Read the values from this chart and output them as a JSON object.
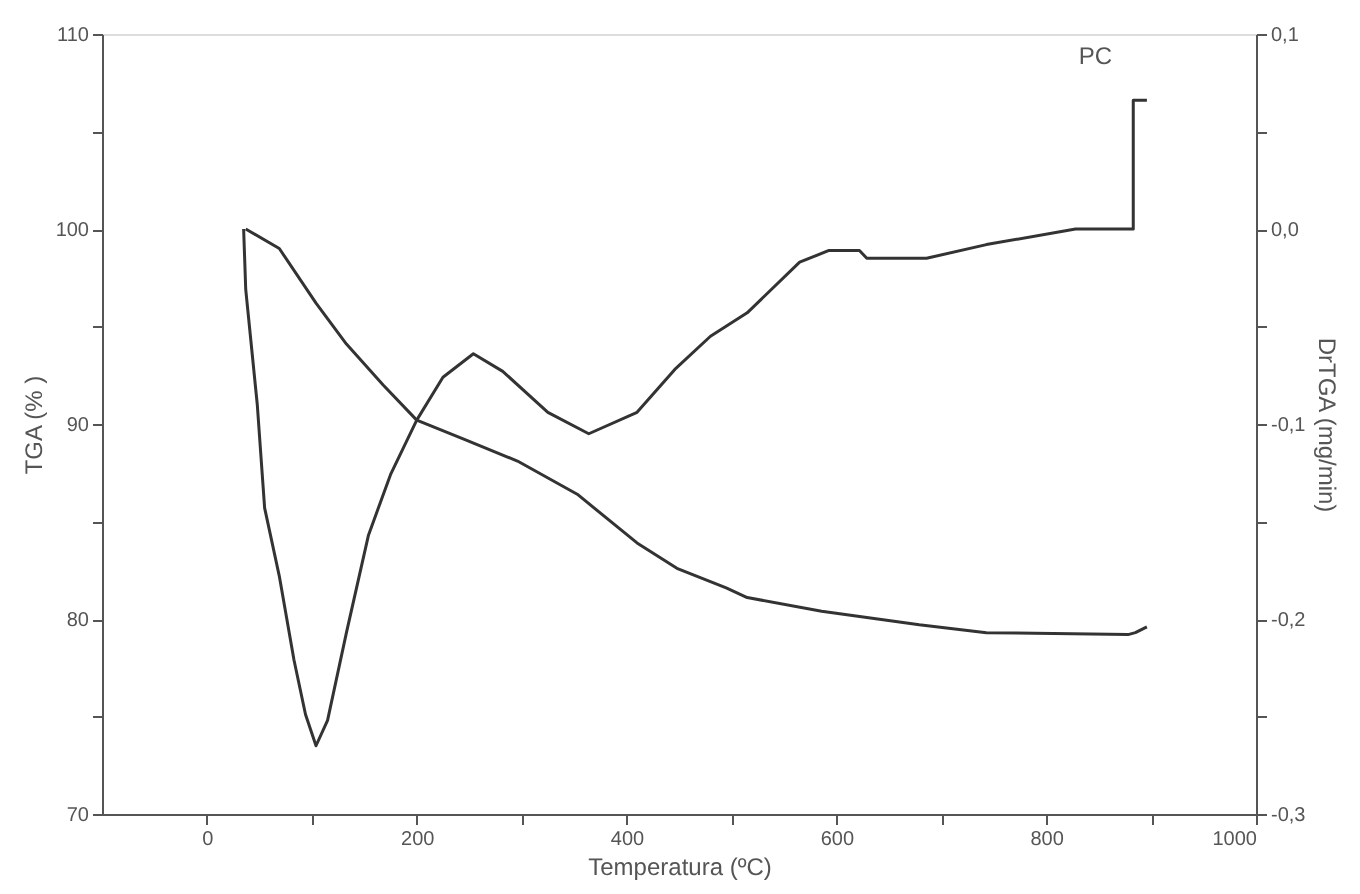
{
  "chart_data": {
    "type": "line",
    "xlabel": "Temperatura (ºC)",
    "ylabel": "TGA (% )",
    "y2label": "DrTGA (mg/min)",
    "annotations": [
      "PC"
    ],
    "xlim": [
      -100,
      1000
    ],
    "xticks": [
      0,
      {
        "value": 100,
        "label": null
      },
      200,
      {
        "value": 300,
        "label": null
      },
      400,
      {
        "value": 500,
        "label": null
      },
      600,
      {
        "value": 700,
        "label": null
      },
      800,
      {
        "value": 900,
        "label": null
      },
      1000
    ],
    "ylim": [
      70,
      110
    ],
    "yticks": [
      70,
      {
        "value": 75,
        "label": null
      },
      80,
      {
        "value": 85,
        "label": null
      },
      90,
      {
        "value": 95,
        "label": null
      },
      100,
      {
        "value": 105,
        "label": null
      },
      110
    ],
    "y2lim": [
      -0.3,
      0.1
    ],
    "y2ticks": [
      {
        "value": -0.3,
        "label": "-0,3"
      },
      {
        "value": -0.25,
        "label": null
      },
      {
        "value": -0.2,
        "label": "-0,2"
      },
      {
        "value": -0.15,
        "label": null
      },
      {
        "value": -0.1,
        "label": "-0,1"
      },
      {
        "value": -0.05,
        "label": null
      },
      {
        "value": 0.0,
        "label": "0,0"
      },
      {
        "value": 0.05,
        "label": null
      },
      {
        "value": 0.1,
        "label": "0,1"
      }
    ],
    "grid": false,
    "marker": "none",
    "line_style": "solid",
    "series": [
      {
        "color": "#333333",
        "x": [
          37,
          69,
          104,
          133,
          168,
          200,
          246,
          296,
          353,
          410,
          448,
          495,
          515,
          586,
          679,
          743,
          878,
          885,
          896
        ],
        "values": [
          100.0,
          99.0,
          96.2,
          94.1,
          92.0,
          90.2,
          89.2,
          88.1,
          86.4,
          83.9,
          82.6,
          81.6,
          81.1,
          80.4,
          79.7,
          79.3,
          79.2,
          79.3,
          79.6
        ]
      },
      {
        "color": "#333333",
        "axis": "y2",
        "x": [
          35,
          37,
          48,
          55,
          69,
          83,
          94,
          104,
          115,
          133,
          154,
          175,
          200,
          225,
          254,
          282,
          325,
          364,
          410,
          446,
          480,
          515,
          565,
          593,
          622,
          629,
          686,
          743,
          828,
          883,
          883,
          896
        ],
        "values": [
          0.0,
          -0.031,
          -0.09,
          -0.143,
          -0.178,
          -0.221,
          -0.249,
          -0.265,
          -0.252,
          -0.207,
          -0.157,
          -0.126,
          -0.098,
          -0.076,
          -0.064,
          -0.073,
          -0.094,
          -0.105,
          -0.094,
          -0.072,
          -0.055,
          -0.043,
          -0.017,
          -0.011,
          -0.011,
          -0.015,
          -0.015,
          -0.008,
          0.0,
          0.0,
          0.066,
          0.066
        ]
      }
    ]
  }
}
